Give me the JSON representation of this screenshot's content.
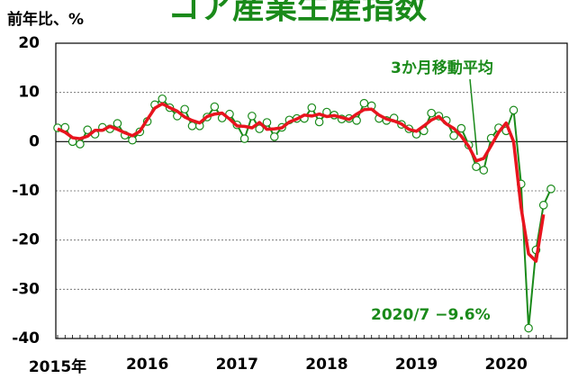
{
  "chart_data": {
    "type": "line",
    "title": "コア産業生産指数",
    "ylabel": "前年比、%",
    "categories": [
      "2015年",
      null,
      null,
      null,
      null,
      null,
      null,
      null,
      null,
      null,
      null,
      null,
      "2016",
      null,
      null,
      null,
      null,
      null,
      null,
      null,
      null,
      null,
      null,
      null,
      "2017",
      null,
      null,
      null,
      null,
      null,
      null,
      null,
      null,
      null,
      null,
      null,
      "2018",
      null,
      null,
      null,
      null,
      null,
      null,
      null,
      null,
      null,
      null,
      null,
      "2019",
      null,
      null,
      null,
      null,
      null,
      null,
      null,
      null,
      null,
      null,
      null,
      "2020",
      null,
      null,
      null,
      null,
      null,
      null
    ],
    "series": [
      {
        "name": "コア産業生産指数",
        "color": "#1a8a1a",
        "values": [
          2.8,
          2.9,
          0.0,
          -0.5,
          2.4,
          1.5,
          2.9,
          2.6,
          3.7,
          1.3,
          0.3,
          2.0,
          4.1,
          7.5,
          8.7,
          6.9,
          5.2,
          6.6,
          3.2,
          3.2,
          5.0,
          7.1,
          4.8,
          5.6,
          3.4,
          0.6,
          5.2,
          2.6,
          3.9,
          1.0,
          2.9,
          4.4,
          4.7,
          4.7,
          6.9,
          4.0,
          6.0,
          5.4,
          4.6,
          4.7,
          4.3,
          7.8,
          7.3,
          4.7,
          4.3,
          4.8,
          3.5,
          2.6,
          1.5,
          2.2,
          5.8,
          5.2,
          4.3,
          1.2,
          2.7,
          -0.7,
          -5.1,
          -5.8,
          0.7,
          2.8,
          2.2,
          6.4,
          -8.6,
          -37.9,
          -22.0,
          -12.9,
          -9.6
        ]
      },
      {
        "name": "3か月移動平均",
        "color": "#e8141e",
        "values": [
          2.6,
          1.9,
          0.8,
          0.6,
          1.1,
          2.3,
          2.3,
          3.1,
          2.5,
          1.8,
          1.2,
          2.1,
          4.5,
          6.8,
          7.7,
          6.9,
          6.2,
          5.0,
          4.3,
          3.8,
          5.1,
          5.6,
          5.8,
          4.6,
          3.2,
          3.1,
          2.8,
          3.9,
          2.5,
          2.6,
          2.8,
          4.0,
          4.6,
          5.4,
          5.2,
          5.6,
          5.1,
          5.3,
          4.9,
          4.5,
          5.6,
          6.5,
          6.6,
          5.4,
          4.6,
          4.2,
          3.6,
          2.5,
          2.1,
          3.2,
          4.4,
          5.1,
          3.6,
          2.7,
          1.1,
          -1.0,
          -3.9,
          -3.4,
          -0.8,
          1.9,
          3.8,
          0.0,
          -13.4,
          -22.8,
          -24.3,
          -14.8,
          null
        ]
      }
    ],
    "annotations": [
      "3か月移動平均",
      "2020/7 −9.6%"
    ],
    "ylim": [
      -40,
      20
    ],
    "yticks": [
      -40,
      -30,
      -20,
      -10,
      0,
      10,
      20
    ],
    "grid": true
  }
}
